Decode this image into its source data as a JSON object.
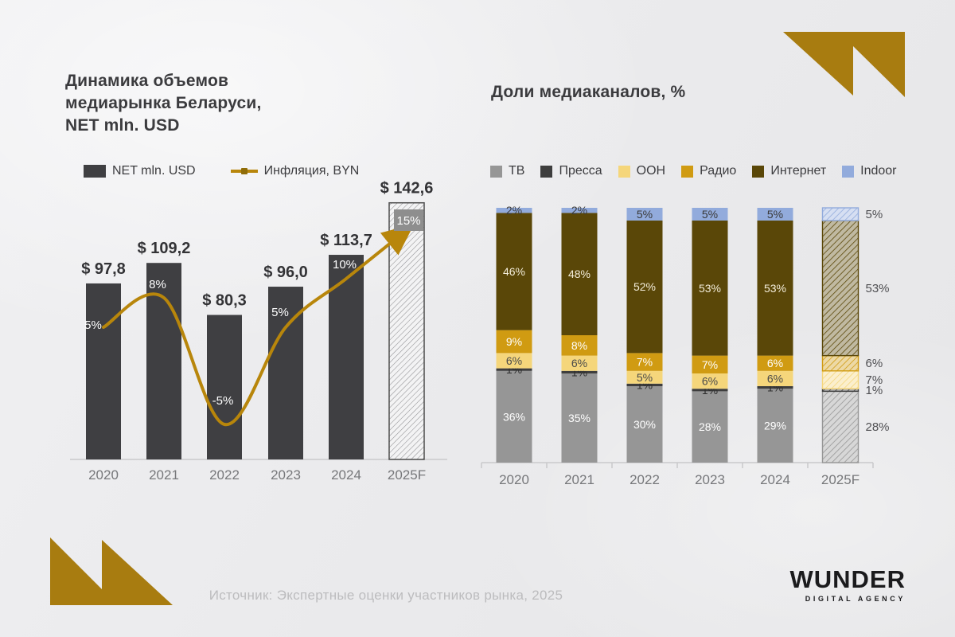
{
  "footer": {
    "source": "Источник: Экспертные оценки участников рынка, 2025"
  },
  "logo": {
    "brand": "WUNDER",
    "tagline": "DIGITAL AGENCY"
  },
  "accent_gold": "#a87c10",
  "chart_data": [
    {
      "type": "bar",
      "title": "Динамика объемов медиарынка Беларуси, NET mln. USD",
      "title_lines": [
        "Динамика объемов",
        "медиарынка Беларуси,",
        "NET mln. USD"
      ],
      "categories": [
        "2020",
        "2021",
        "2022",
        "2023",
        "2024",
        "2025F"
      ],
      "forecast_index": 5,
      "grid": false,
      "legend_position": "top",
      "series": [
        {
          "name": "NET mln. USD",
          "type": "bar",
          "values": [
            97.8,
            109.2,
            80.3,
            96.0,
            113.7,
            142.6
          ],
          "labels": [
            "$ 97,8",
            "$ 109,2",
            "$ 80,3",
            "$ 96,0",
            "$ 113,7",
            "$ 142,6"
          ],
          "color": "#3f3f42"
        },
        {
          "name": "Инфляция, BYN",
          "type": "line",
          "values": [
            5,
            8,
            -5,
            5,
            10,
            15
          ],
          "labels": [
            "5%",
            "8%",
            "-5%",
            "5%",
            "10%",
            "15%"
          ],
          "color": "#b8860b"
        }
      ]
    },
    {
      "type": "bar",
      "subtype": "stacked-percent",
      "title": "Доли медиаканалов, %",
      "categories": [
        "2020",
        "2021",
        "2022",
        "2023",
        "2024",
        "2025F"
      ],
      "forecast_index": 5,
      "ylim": [
        0,
        100
      ],
      "grid": false,
      "legend_position": "top",
      "series": [
        {
          "name": "ТВ",
          "color": "#969696",
          "label_color": "#ffffff",
          "values": [
            36,
            35,
            30,
            28,
            29,
            28
          ]
        },
        {
          "name": "Пресса",
          "color": "#3e3e3e",
          "label_color": "#2e2e2e",
          "values": [
            1,
            1,
            1,
            1,
            1,
            1
          ]
        },
        {
          "name": "OOH",
          "color": "#f5d67b",
          "label_color": "#4a4a4a",
          "values": [
            6,
            6,
            5,
            6,
            6,
            7
          ]
        },
        {
          "name": "Радио",
          "color": "#d09b12",
          "label_color": "#ffffff",
          "values": [
            9,
            8,
            7,
            7,
            6,
            6
          ]
        },
        {
          "name": "Интернет",
          "color": "#5a4708",
          "label_color": "#f3edda",
          "values": [
            46,
            48,
            52,
            53,
            53,
            53
          ]
        },
        {
          "name": "Indoor",
          "color": "#92abdc",
          "label_color": "#3a3a3a",
          "values": [
            2,
            2,
            5,
            5,
            5,
            5
          ]
        }
      ]
    }
  ]
}
